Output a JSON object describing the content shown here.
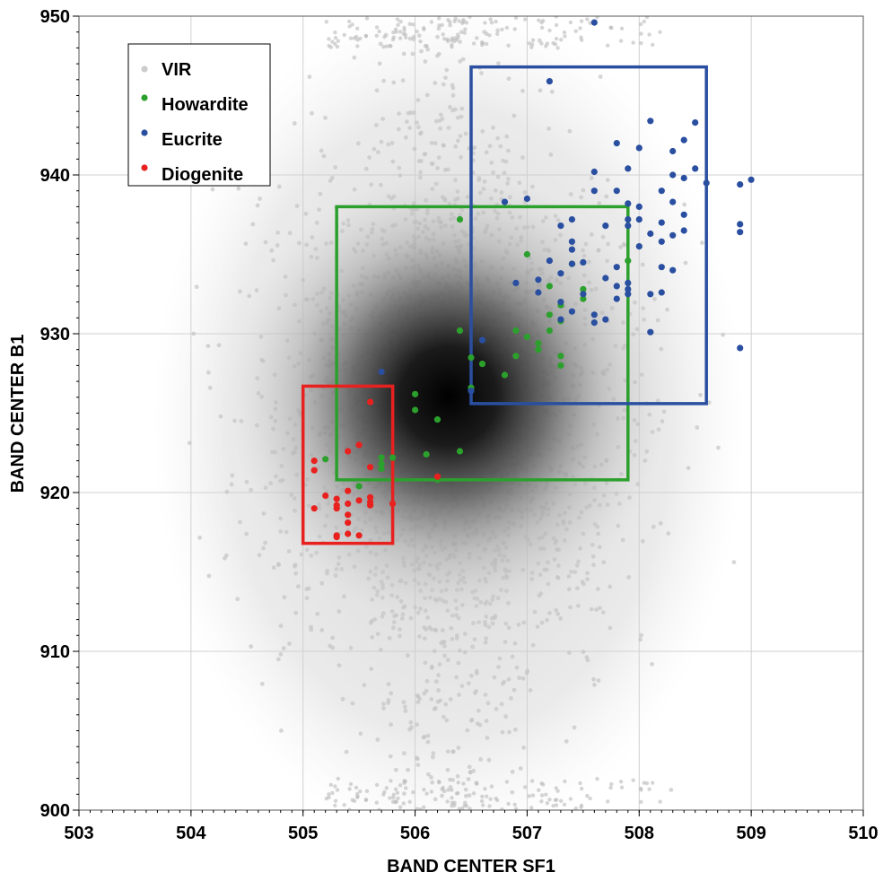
{
  "chart_data": {
    "type": "scatter",
    "title": "",
    "xlabel": "BAND CENTER SF1",
    "ylabel": "BAND CENTER B1",
    "xlim": [
      503,
      510
    ],
    "ylim": [
      900,
      950
    ],
    "x_ticks": [
      "503",
      "504",
      "505",
      "506",
      "507",
      "508",
      "509",
      "510"
    ],
    "y_ticks": [
      "900",
      "910",
      "920",
      "930",
      "940",
      "950"
    ],
    "grid": true,
    "legend_position": "top-left",
    "background_cloud": {
      "name": "VIR",
      "color": "#c8c8c8",
      "density_center": [
        506.3,
        925.5
      ],
      "x_range": [
        503.3,
        509.9
      ],
      "y_range": [
        900,
        950
      ]
    },
    "series": [
      {
        "name": "Howardite",
        "color": "#2ca02c",
        "points": [
          [
            506.4,
            937.2
          ],
          [
            507.0,
            935.0
          ],
          [
            507.4,
            934.4
          ],
          [
            507.9,
            934.6
          ],
          [
            507.2,
            933.0
          ],
          [
            507.5,
            932.8
          ],
          [
            507.5,
            932.2
          ],
          [
            507.3,
            931.8
          ],
          [
            507.2,
            931.2
          ],
          [
            507.3,
            930.8
          ],
          [
            507.2,
            930.2
          ],
          [
            507.0,
            929.8
          ],
          [
            506.4,
            930.2
          ],
          [
            506.9,
            930.2
          ],
          [
            507.1,
            929.4
          ],
          [
            506.9,
            928.6
          ],
          [
            507.1,
            929.0
          ],
          [
            507.3,
            928.6
          ],
          [
            507.3,
            928.0
          ],
          [
            506.5,
            928.5
          ],
          [
            506.6,
            928.1
          ],
          [
            506.8,
            927.4
          ],
          [
            506.5,
            926.6
          ],
          [
            506.0,
            926.2
          ],
          [
            506.0,
            925.2
          ],
          [
            506.2,
            924.6
          ],
          [
            506.4,
            922.6
          ],
          [
            506.1,
            922.4
          ],
          [
            505.7,
            922.2
          ],
          [
            505.8,
            922.2
          ],
          [
            505.7,
            921.8
          ],
          [
            505.7,
            921.5
          ],
          [
            505.2,
            922.1
          ],
          [
            506.2,
            920.8
          ],
          [
            505.5,
            920.4
          ]
        ]
      },
      {
        "name": "Eucrite",
        "color": "#2a4fa0",
        "points": [
          [
            507.6,
            949.6
          ],
          [
            507.2,
            945.9
          ],
          [
            508.1,
            943.4
          ],
          [
            508.5,
            943.3
          ],
          [
            508.4,
            942.2
          ],
          [
            507.8,
            942.0
          ],
          [
            508.0,
            941.7
          ],
          [
            508.3,
            941.5
          ],
          [
            507.6,
            940.2
          ],
          [
            507.9,
            940.4
          ],
          [
            508.5,
            940.4
          ],
          [
            508.3,
            940.0
          ],
          [
            508.4,
            939.8
          ],
          [
            508.6,
            939.5
          ],
          [
            508.9,
            939.4
          ],
          [
            509.0,
            939.7
          ],
          [
            507.6,
            939.0
          ],
          [
            507.8,
            939.0
          ],
          [
            508.2,
            939.0
          ],
          [
            506.8,
            938.3
          ],
          [
            507.0,
            938.5
          ],
          [
            508.0,
            938.0
          ],
          [
            507.9,
            938.2
          ],
          [
            508.3,
            938.3
          ],
          [
            508.4,
            937.5
          ],
          [
            507.9,
            937.2
          ],
          [
            508.0,
            937.2
          ],
          [
            508.2,
            937.0
          ],
          [
            507.3,
            936.8
          ],
          [
            507.4,
            937.2
          ],
          [
            507.7,
            936.8
          ],
          [
            507.9,
            936.8
          ],
          [
            508.1,
            936.3
          ],
          [
            508.2,
            935.8
          ],
          [
            508.3,
            936.2
          ],
          [
            508.4,
            936.5
          ],
          [
            508.9,
            936.9
          ],
          [
            508.9,
            936.4
          ],
          [
            507.4,
            935.8
          ],
          [
            507.4,
            935.3
          ],
          [
            508.0,
            935.5
          ],
          [
            507.2,
            934.6
          ],
          [
            507.4,
            934.4
          ],
          [
            507.5,
            934.5
          ],
          [
            507.8,
            934.2
          ],
          [
            508.2,
            934.2
          ],
          [
            508.3,
            934.0
          ],
          [
            507.3,
            933.8
          ],
          [
            507.1,
            933.4
          ],
          [
            507.7,
            933.5
          ],
          [
            507.9,
            933.2
          ],
          [
            507.8,
            933.0
          ],
          [
            507.9,
            932.8
          ],
          [
            506.9,
            933.2
          ],
          [
            507.1,
            932.6
          ],
          [
            507.5,
            932.5
          ],
          [
            507.9,
            932.5
          ],
          [
            507.8,
            932.2
          ],
          [
            508.1,
            932.5
          ],
          [
            508.2,
            932.6
          ],
          [
            507.3,
            932.0
          ],
          [
            507.4,
            931.4
          ],
          [
            507.3,
            930.9
          ],
          [
            507.6,
            931.2
          ],
          [
            507.6,
            930.7
          ],
          [
            507.7,
            930.9
          ],
          [
            508.1,
            930.1
          ],
          [
            506.6,
            929.6
          ],
          [
            508.9,
            929.1
          ],
          [
            506.5,
            926.4
          ],
          [
            505.7,
            927.6
          ]
        ]
      },
      {
        "name": "Diogenite",
        "color": "#e8211f",
        "points": [
          [
            505.6,
            925.7
          ],
          [
            505.1,
            922.0
          ],
          [
            505.1,
            921.4
          ],
          [
            505.4,
            922.6
          ],
          [
            505.5,
            923.0
          ],
          [
            505.6,
            921.6
          ],
          [
            505.2,
            919.8
          ],
          [
            505.4,
            920.1
          ],
          [
            505.3,
            919.6
          ],
          [
            505.5,
            919.5
          ],
          [
            505.6,
            919.7
          ],
          [
            505.6,
            919.4
          ],
          [
            505.4,
            919.3
          ],
          [
            505.1,
            919.0
          ],
          [
            505.3,
            919.2
          ],
          [
            505.3,
            919.0
          ],
          [
            505.6,
            919.2
          ],
          [
            505.8,
            919.3
          ],
          [
            505.4,
            918.6
          ],
          [
            505.4,
            918.1
          ],
          [
            505.3,
            917.3
          ],
          [
            505.4,
            917.4
          ],
          [
            505.5,
            917.3
          ],
          [
            505.3,
            917.2
          ],
          [
            506.2,
            921.0
          ]
        ]
      }
    ],
    "selection_boxes": [
      {
        "color": "#2ca02c",
        "x_range": [
          505.3,
          507.9
        ],
        "y_range": [
          920.8,
          938.0
        ]
      },
      {
        "color": "#2a4fa0",
        "x_range": [
          506.5,
          508.6
        ],
        "y_range": [
          925.6,
          946.8
        ]
      },
      {
        "color": "#e8211f",
        "x_range": [
          505.0,
          505.8
        ],
        "y_range": [
          916.8,
          926.7
        ]
      }
    ]
  }
}
